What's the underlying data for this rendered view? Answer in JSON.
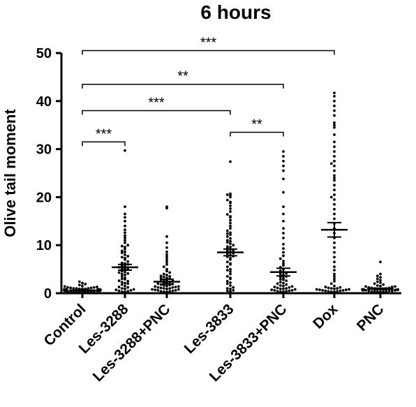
{
  "chart_data": {
    "type": "scatter",
    "title": "6 hours",
    "xlabel": "",
    "ylabel": "Olive tail moment",
    "ylim": [
      0,
      50
    ],
    "yticks": [
      0,
      10,
      20,
      30,
      40,
      50
    ],
    "grid": false,
    "categories": [
      "Control",
      "Les-3288",
      "Les-3288+PNC",
      "Les-3833",
      "Les-3833+PNC",
      "Dox",
      "PNC"
    ],
    "summary": [
      {
        "category": "Control",
        "mean": 0.6,
        "sem": 0.1
      },
      {
        "category": "Les-3288",
        "mean": 5.4,
        "sem": 0.6
      },
      {
        "category": "Les-3288+PNC",
        "mean": 2.4,
        "sem": 0.5
      },
      {
        "category": "Les-3833",
        "mean": 8.5,
        "sem": 0.7
      },
      {
        "category": "Les-3833+PNC",
        "mean": 4.4,
        "sem": 0.8
      },
      {
        "category": "Dox",
        "mean": 13.2,
        "sem": 1.5
      },
      {
        "category": "PNC",
        "mean": 0.9,
        "sem": 0.15
      }
    ],
    "significance": [
      {
        "from": "Control",
        "to": "Les-3288",
        "label": "***",
        "y": 31.5
      },
      {
        "from": "Les-3833",
        "to": "Les-3833+PNC",
        "label": "**",
        "y": 33.5
      },
      {
        "from": "Control",
        "to": "Les-3833",
        "label": "***",
        "y": 38
      },
      {
        "from": "Control",
        "to": "Les-3833+PNC",
        "label": "**",
        "y": 43.5
      },
      {
        "from": "Control",
        "to": "Dox",
        "label": "***",
        "y": 50.5
      }
    ],
    "series": [
      {
        "category": "Control",
        "values": [
          0.1,
          0.1,
          0.2,
          0.2,
          0.2,
          0.3,
          0.3,
          0.3,
          0.3,
          0.4,
          0.4,
          0.4,
          0.4,
          0.5,
          0.5,
          0.5,
          0.5,
          0.6,
          0.6,
          0.6,
          0.6,
          0.7,
          0.7,
          0.7,
          0.8,
          0.8,
          0.8,
          0.9,
          0.9,
          1.0,
          1.0,
          1.1,
          1.1,
          1.2,
          1.2,
          1.3,
          1.4,
          1.5,
          1.7,
          1.9,
          2.1,
          2.4,
          0.2,
          0.3,
          0.5,
          0.6,
          0.8,
          0.9,
          1.0,
          0.4
        ]
      },
      {
        "category": "Les-3288",
        "values": [
          0.1,
          0.2,
          0.3,
          0.4,
          0.5,
          0.6,
          0.8,
          1.0,
          1.2,
          1.5,
          1.8,
          2.0,
          2.3,
          2.6,
          2.9,
          3.2,
          3.5,
          3.8,
          4.0,
          4.3,
          4.6,
          4.9,
          5.1,
          5.4,
          5.7,
          6.0,
          6.3,
          6.6,
          7.0,
          7.3,
          7.7,
          8.0,
          8.4,
          8.8,
          9.2,
          9.6,
          10.0,
          10.5,
          11.0,
          11.5,
          12.0,
          12.6,
          13.2,
          14.0,
          15.0,
          15.8,
          16.5,
          18.0,
          29.7,
          0.3,
          0.7,
          1.3,
          2.1,
          3.0,
          4.4,
          5.0,
          5.6,
          6.2,
          7.5,
          8.6,
          9.8,
          0.9,
          2.5,
          4.1,
          5.3
        ]
      },
      {
        "category": "Les-3288+PNC",
        "values": [
          0.1,
          0.2,
          0.2,
          0.3,
          0.4,
          0.5,
          0.6,
          0.7,
          0.8,
          0.9,
          1.0,
          1.1,
          1.2,
          1.3,
          1.4,
          1.5,
          1.6,
          1.8,
          1.9,
          2.0,
          2.2,
          2.3,
          2.5,
          2.6,
          2.8,
          3.0,
          3.2,
          3.4,
          3.6,
          3.8,
          4.0,
          4.3,
          4.6,
          5.0,
          5.5,
          6.0,
          6.5,
          7.0,
          7.5,
          8.0,
          8.6,
          9.5,
          10.5,
          11.8,
          17.7,
          18.0,
          0.3,
          0.6,
          1.0,
          1.4,
          1.7,
          2.1,
          2.7,
          3.1,
          3.5,
          0.4,
          0.8,
          1.2
        ]
      },
      {
        "category": "Les-3833",
        "values": [
          0.2,
          0.4,
          0.6,
          0.9,
          1.2,
          1.6,
          2.0,
          2.5,
          3.0,
          3.5,
          4.0,
          4.5,
          5.0,
          5.5,
          6.0,
          6.5,
          7.0,
          7.3,
          7.6,
          7.9,
          8.2,
          8.5,
          8.8,
          9.1,
          9.4,
          9.7,
          10.0,
          10.3,
          10.6,
          11.0,
          11.4,
          11.8,
          12.2,
          12.6,
          13.0,
          13.5,
          14.0,
          14.6,
          15.2,
          15.8,
          16.4,
          17.0,
          17.6,
          18.2,
          18.8,
          19.4,
          20.0,
          20.5,
          20.7,
          27.4,
          0.5,
          1.0,
          2.2,
          3.2,
          4.8,
          6.2,
          7.7,
          8.3,
          8.9,
          9.6,
          10.8,
          12.4,
          16.0,
          19.0,
          20.4
        ]
      },
      {
        "category": "Les-3833+PNC",
        "values": [
          0.1,
          0.2,
          0.3,
          0.4,
          0.5,
          0.6,
          0.7,
          0.8,
          0.9,
          1.0,
          1.2,
          1.4,
          1.6,
          1.8,
          2.0,
          2.3,
          2.6,
          2.9,
          3.2,
          3.5,
          3.8,
          4.1,
          4.4,
          4.7,
          5.0,
          5.4,
          5.8,
          6.2,
          6.7,
          7.2,
          7.8,
          8.5,
          9.3,
          10.2,
          11.5,
          12.5,
          13.5,
          15.0,
          16.5,
          18.0,
          21.0,
          23.8,
          25.5,
          26.5,
          27.5,
          28.5,
          29.5,
          0.3,
          0.6,
          1.1,
          1.5,
          2.1,
          2.8,
          3.4,
          4.0,
          0.4,
          0.9,
          1.3
        ]
      },
      {
        "category": "Dox",
        "values": [
          0.1,
          0.2,
          0.3,
          0.4,
          0.5,
          0.6,
          0.8,
          1.0,
          1.2,
          1.5,
          2.0,
          2.5,
          3.0,
          3.5,
          4.0,
          4.8,
          5.5,
          6.5,
          7.5,
          8.5,
          9.5,
          10.5,
          11.5,
          12.5,
          13.5,
          14.5,
          15.5,
          16.5,
          17.5,
          18.5,
          19.5,
          20.5,
          21.5,
          22.5,
          23.5,
          24.5,
          25.5,
          26.5,
          27.5,
          28.5,
          29.5,
          30.5,
          31.5,
          33.0,
          34.5,
          35.5,
          37.0,
          38.0,
          39.0,
          40.0,
          41.0,
          41.7,
          0.3,
          0.5,
          0.7,
          0.9,
          1.1,
          1.3,
          0.4,
          0.6,
          0.8,
          1.0,
          0.2,
          0.7,
          20.0,
          24.0,
          27.0,
          35.0
        ]
      },
      {
        "category": "PNC",
        "values": [
          0.1,
          0.1,
          0.2,
          0.2,
          0.3,
          0.3,
          0.4,
          0.4,
          0.5,
          0.5,
          0.6,
          0.6,
          0.7,
          0.7,
          0.8,
          0.8,
          0.9,
          0.9,
          1.0,
          1.0,
          1.1,
          1.2,
          1.3,
          1.4,
          1.5,
          1.6,
          1.8,
          2.0,
          2.2,
          2.4,
          2.7,
          3.0,
          3.3,
          3.6,
          4.0,
          6.5,
          0.2,
          0.3,
          0.5,
          0.6,
          0.8,
          0.9,
          1.1,
          1.4,
          0.4,
          0.7
        ]
      }
    ]
  }
}
